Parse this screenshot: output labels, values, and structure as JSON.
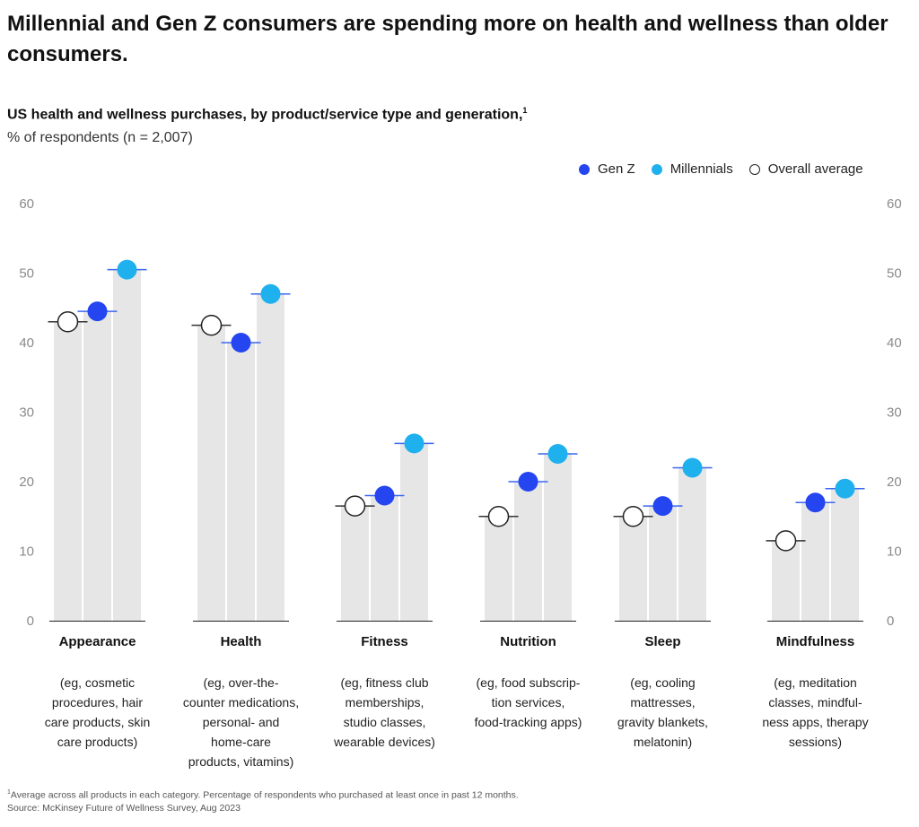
{
  "title": "Millennial and Gen Z consumers are spending more on health and wellness than older consumers.",
  "subtitle": "US health and wellness purchases, by product/service type and generation,",
  "subtitle_marker": "1",
  "unit": "% of respondents (n = 2,007)",
  "legend": [
    {
      "name": "Gen Z",
      "color": "#2445f0"
    },
    {
      "name": "Millennials",
      "color": "#1fb0ee"
    },
    {
      "name": "Overall average",
      "color": "#ffffff"
    }
  ],
  "chart_data": {
    "type": "bar",
    "title": "US health and wellness purchases, by product/service type and generation",
    "ylabel": "% of respondents (n = 2,007)",
    "ylim": [
      0,
      60
    ],
    "yticks": [
      "0",
      "10",
      "20",
      "30",
      "40",
      "50",
      "60"
    ],
    "categories": [
      "Appearance",
      "Health",
      "Fitness",
      "Nutrition",
      "Sleep",
      "Mindfulness"
    ],
    "descriptions": [
      [
        "(eg, cosmetic",
        "procedures, hair",
        "care products, skin",
        "care products)"
      ],
      [
        "(eg, over-the-",
        "counter medications,",
        "personal- and",
        "home-care",
        "products, vitamins)"
      ],
      [
        "(eg, fitness club",
        "memberships,",
        "studio classes,",
        "wearable devices)"
      ],
      [
        "(eg, food subscrip-",
        "tion services,",
        "food-tracking apps)"
      ],
      [
        "(eg, cooling",
        "mattresses,",
        "gravity blankets,",
        "melatonin)"
      ],
      [
        "(eg, meditation",
        "classes, mindful-",
        "ness apps, therapy",
        "sessions)"
      ]
    ],
    "series": [
      {
        "name": "Overall average",
        "values": [
          43,
          42.5,
          16.5,
          15,
          15,
          11.5
        ]
      },
      {
        "name": "Gen Z",
        "values": [
          44.5,
          40,
          18,
          20,
          16.5,
          17
        ]
      },
      {
        "name": "Millennials",
        "values": [
          50.5,
          47,
          25.5,
          24,
          22,
          19
        ]
      }
    ]
  },
  "footnote": {
    "marker": "1",
    "note": "Average across all products in each category. Percentage of respondents who purchased at least once in past 12 months.",
    "source": "Source: McKinsey Future of Wellness Survey, Aug 2023"
  }
}
